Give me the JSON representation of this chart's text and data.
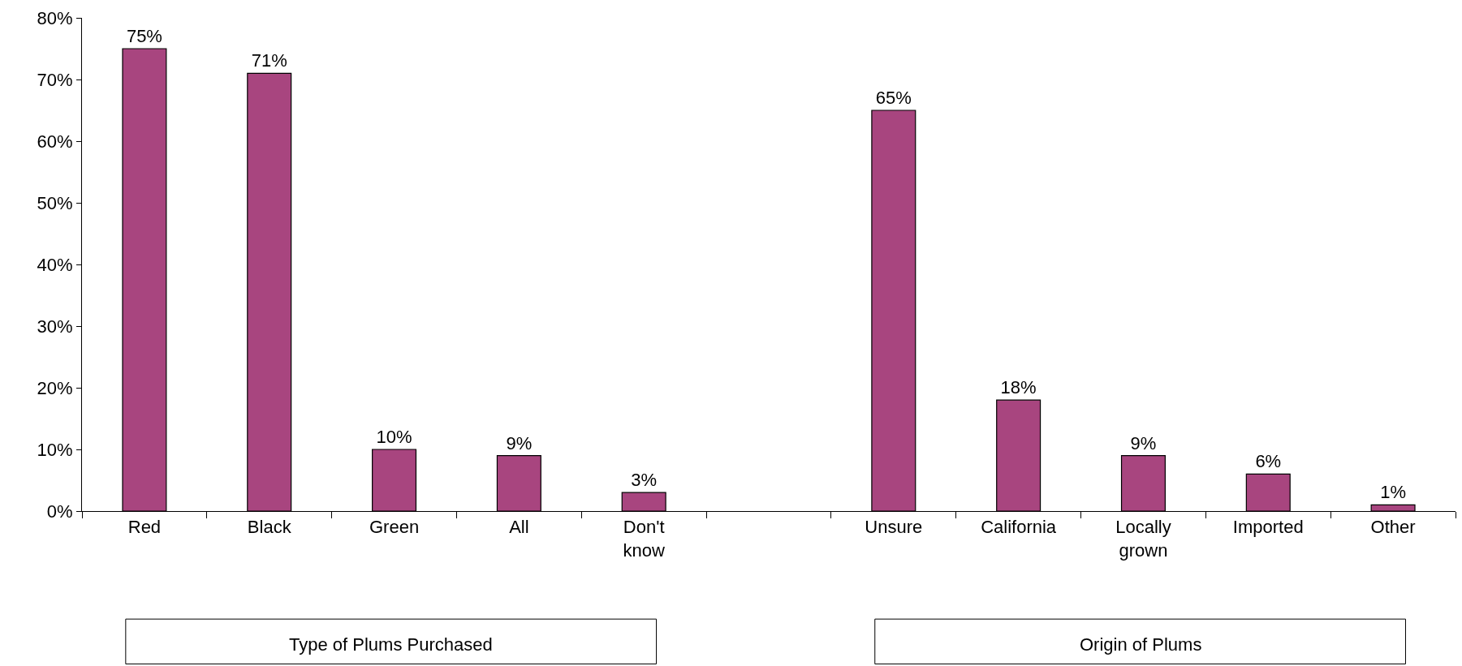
{
  "chart_data": {
    "type": "bar",
    "categories": [
      "Red",
      "Black",
      "Green",
      "All",
      "Don't know",
      null,
      "Unsure",
      "California",
      "Locally grown",
      "Imported",
      "Other"
    ],
    "values": [
      75,
      71,
      10,
      9,
      3,
      null,
      65,
      18,
      9,
      6,
      1
    ],
    "value_labels": [
      "75%",
      "71%",
      "10%",
      "9%",
      "3%",
      null,
      "65%",
      "18%",
      "9%",
      "6%",
      "1%"
    ],
    "color": "#a8457f",
    "ylim": [
      0,
      80
    ],
    "yticks": [
      {
        "value": 0,
        "label": "0%"
      },
      {
        "value": 10,
        "label": "10%"
      },
      {
        "value": 20,
        "label": "20%"
      },
      {
        "value": 30,
        "label": "30%"
      },
      {
        "value": 40,
        "label": "40%"
      },
      {
        "value": 50,
        "label": "50%"
      },
      {
        "value": 60,
        "label": "60%"
      },
      {
        "value": 70,
        "label": "70%"
      },
      {
        "value": 80,
        "label": "80%"
      }
    ],
    "grid": false,
    "annotations": [
      "Type of Plums Purchased",
      "Origin of Plums"
    ]
  }
}
